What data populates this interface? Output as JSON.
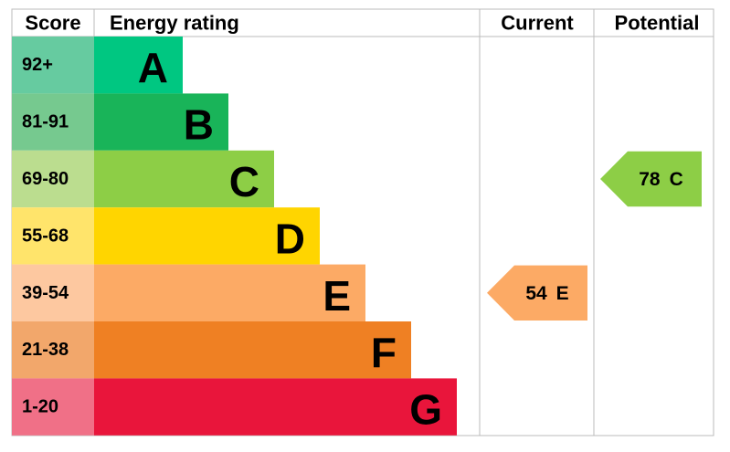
{
  "header": {
    "score": "Score",
    "rating": "Energy rating",
    "current": "Current",
    "potential": "Potential"
  },
  "bands": [
    {
      "score": "92+",
      "letter": "A",
      "color": "#00c781",
      "light": "#66cba0"
    },
    {
      "score": "81-91",
      "letter": "B",
      "color": "#19b459",
      "light": "#76c98f"
    },
    {
      "score": "69-80",
      "letter": "C",
      "color": "#8dce46",
      "light": "#bbdd8f"
    },
    {
      "score": "55-68",
      "letter": "D",
      "color": "#ffd500",
      "light": "#ffe46b"
    },
    {
      "score": "39-54",
      "letter": "E",
      "color": "#fcaa65",
      "light": "#fdc8a0"
    },
    {
      "score": "21-38",
      "letter": "F",
      "color": "#ef8023",
      "light": "#f2a76b"
    },
    {
      "score": "1-20",
      "letter": "G",
      "color": "#e9153b",
      "light": "#f07087"
    }
  ],
  "current": {
    "value": "54",
    "letter": "E",
    "band": 4
  },
  "potential": {
    "value": "78",
    "letter": "C",
    "band": 2
  }
}
